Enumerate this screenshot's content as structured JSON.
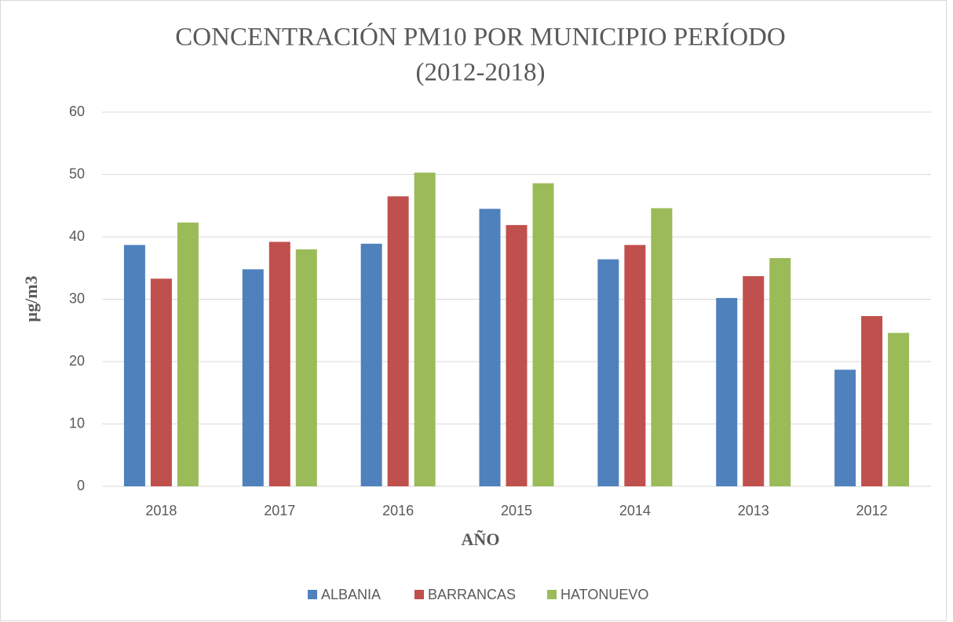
{
  "chart_data": {
    "type": "bar",
    "title": [
      "CONCENTRACIÓN PM10 POR MUNICIPIO PERÍODO",
      "(2012-2018)"
    ],
    "x_label": "AÑO",
    "y_label": "µg/m3",
    "categories": [
      "2018",
      "2017",
      "2016",
      "2015",
      "2014",
      "2013",
      "2012"
    ],
    "series": [
      {
        "name": "ALBANIA",
        "color": "#4f81bd",
        "values": [
          38.7,
          34.8,
          38.9,
          44.5,
          36.4,
          30.2,
          18.7
        ]
      },
      {
        "name": "BARRANCAS",
        "color": "#c0504d",
        "values": [
          33.3,
          39.2,
          46.5,
          41.9,
          38.7,
          33.7,
          27.3
        ]
      },
      {
        "name": "HATONUEVO",
        "color": "#9bbb59",
        "values": [
          42.3,
          38.0,
          50.3,
          48.6,
          44.6,
          36.6,
          24.6
        ]
      }
    ],
    "ylim": [
      0,
      60
    ],
    "yticks": [
      0,
      10,
      20,
      30,
      40,
      50,
      60
    ],
    "grid": true,
    "legend": "bottom"
  }
}
